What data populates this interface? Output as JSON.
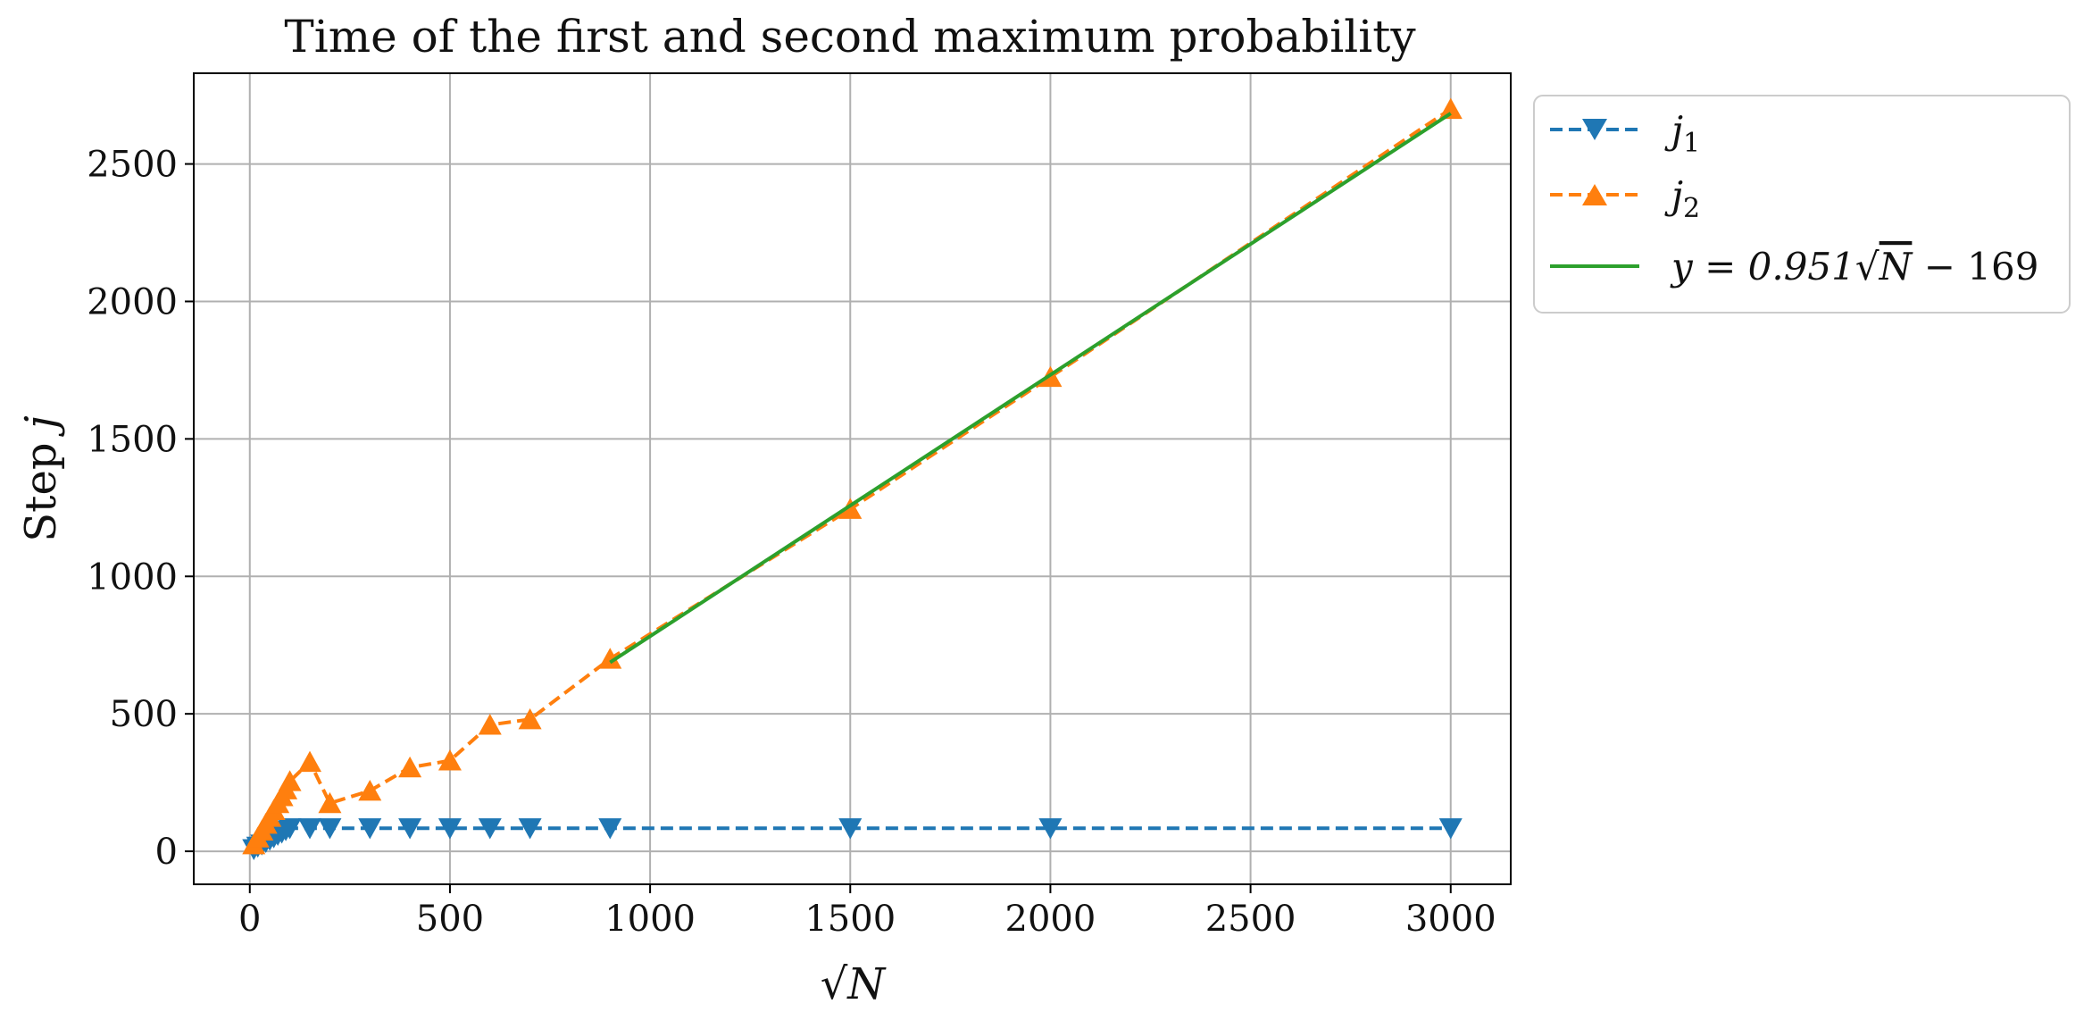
{
  "chart_data": {
    "type": "line",
    "title": "Time of the first and second maximum probability",
    "xlabel": "√N",
    "ylabel": "Step j",
    "xlim": [
      -140,
      3150
    ],
    "ylim": [
      -120,
      2830
    ],
    "xticks": [
      0,
      500,
      1000,
      1500,
      2000,
      2500,
      3000
    ],
    "yticks": [
      0,
      500,
      1000,
      1500,
      2000,
      2500
    ],
    "grid": true,
    "legend_position": "outside-top-right",
    "series": [
      {
        "name": "j1",
        "color": "#1f77b4",
        "linestyle": "dashed",
        "marker": "triangle-down",
        "x": [
          10,
          20,
          30,
          40,
          50,
          60,
          70,
          80,
          90,
          100,
          150,
          200,
          300,
          400,
          500,
          600,
          700,
          900,
          1500,
          2000,
          3000
        ],
        "y": [
          8,
          17,
          25,
          34,
          42,
          51,
          60,
          68,
          77,
          84,
          84,
          84,
          84,
          84,
          84,
          84,
          84,
          84,
          84,
          84,
          84
        ]
      },
      {
        "name": "j2",
        "color": "#ff7f0e",
        "linestyle": "dashed",
        "marker": "triangle-up",
        "x": [
          10,
          20,
          30,
          40,
          50,
          60,
          70,
          80,
          90,
          100,
          150,
          200,
          300,
          400,
          500,
          600,
          700,
          900,
          1500,
          2000,
          3000
        ],
        "y": [
          25,
          50,
          75,
          100,
          125,
          150,
          175,
          200,
          225,
          255,
          325,
          175,
          220,
          305,
          330,
          460,
          480,
          700,
          1245,
          1725,
          2700
        ]
      },
      {
        "name": "y = 0.951√N − 169",
        "color": "#2ca02c",
        "linestyle": "solid",
        "marker": "none",
        "x": [
          900,
          3000
        ],
        "y": [
          687,
          2684
        ]
      }
    ]
  },
  "legend": {
    "j1_base": "j",
    "j1_sub": "1",
    "j2_base": "j",
    "j2_sub": "2",
    "fit_prefix": "y = 0.951",
    "fit_radical": "√",
    "fit_radicand": "N",
    "fit_suffix": " − 169"
  },
  "labels": {
    "x_radical": "√",
    "x_radicand": "N",
    "y_text": "Step ",
    "y_var": "j"
  }
}
